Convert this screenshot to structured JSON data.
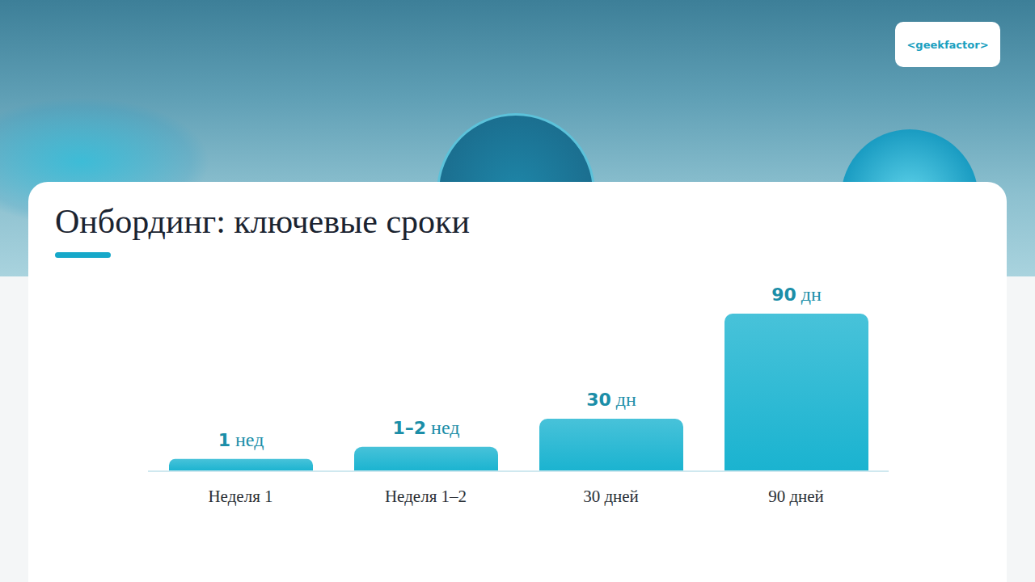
{
  "chart_data": {
    "type": "bar",
    "title": "Онбординг: ключевые сроки",
    "annotations": [
      "<geekfactor>"
    ],
    "categories": [
      "Неделя 1",
      "Неделя 1–2",
      "30 дней",
      "90 дней"
    ],
    "values": [
      7,
      14,
      30,
      90
    ],
    "value_labels": [
      "1 нед",
      "1–2 нед",
      "30 дн",
      "90 дн"
    ],
    "color": "#1ab3d0",
    "ylim": [
      0,
      90
    ],
    "data_labels": true,
    "tick_labels": "x",
    "grid": false
  }
}
